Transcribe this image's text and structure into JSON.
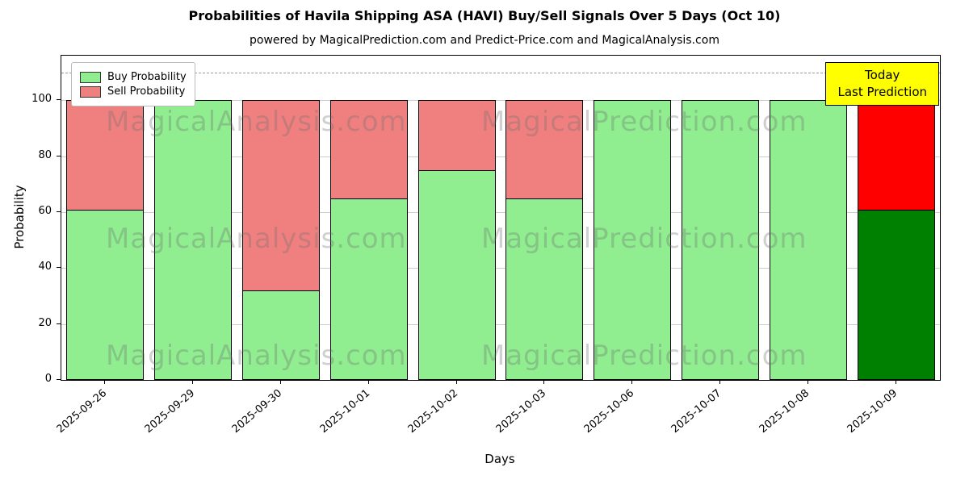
{
  "title": "Probabilities of Havila Shipping ASA (HAVI) Buy/Sell Signals Over 5 Days (Oct 10)",
  "subtitle": "powered by MagicalPrediction.com and Predict-Price.com and MagicalAnalysis.com",
  "axes": {
    "xlabel": "Days",
    "ylabel": "Probability",
    "yticks": [
      0,
      20,
      40,
      60,
      80,
      100
    ],
    "ylim": [
      0,
      116
    ],
    "dashed_line_y": 110,
    "grid": true
  },
  "legend": {
    "position": "upper left",
    "items": [
      {
        "label": "Buy Probability",
        "color": "#90EE90"
      },
      {
        "label": "Sell Probability",
        "color": "#F08080"
      }
    ]
  },
  "annotation": {
    "lines": [
      "Today",
      "Last Prediction"
    ],
    "bg_color": "#FFFF00",
    "border_color": "#000000"
  },
  "watermarks": {
    "texts": [
      "MagicalAnalysis.com",
      "MagicalPrediction.com"
    ],
    "rows": 3,
    "color": "rgba(110,110,110,0.32)"
  },
  "chart_data": {
    "type": "bar",
    "stacked": true,
    "title": "Probabilities of Havila Shipping ASA (HAVI) Buy/Sell Signals Over 5 Days (Oct 10)",
    "xlabel": "Days",
    "ylabel": "Probability",
    "ylim": [
      0,
      116
    ],
    "grid": true,
    "legend_position": "upper left",
    "dashed_reference_line_y": 110,
    "categories": [
      "2025-09-26",
      "2025-09-29",
      "2025-09-30",
      "2025-10-01",
      "2025-10-02",
      "2025-10-03",
      "2025-10-06",
      "2025-10-07",
      "2025-10-08",
      "2025-10-09"
    ],
    "series": [
      {
        "name": "Buy Probability",
        "color": "#90EE90",
        "last_bar_color": "#008000",
        "values": [
          61,
          100,
          32,
          65,
          75,
          65,
          100,
          100,
          100,
          61
        ]
      },
      {
        "name": "Sell Probability",
        "color": "#F08080",
        "last_bar_color": "#FF0000",
        "values": [
          39,
          0,
          68,
          35,
          25,
          35,
          0,
          0,
          0,
          39
        ]
      }
    ]
  }
}
